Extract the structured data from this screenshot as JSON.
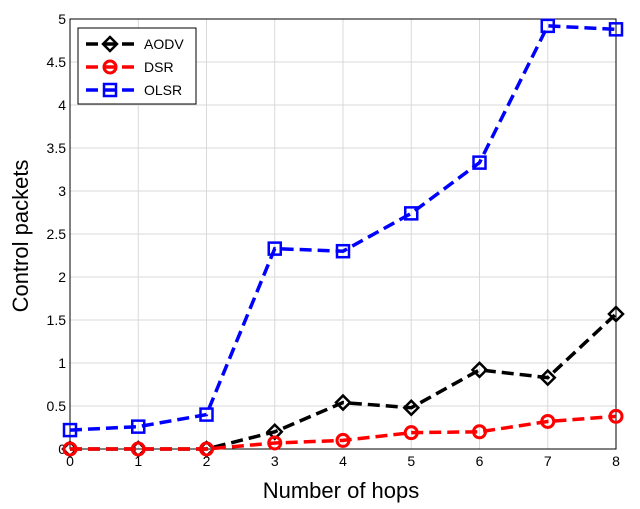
{
  "chart_data": {
    "type": "line",
    "title": "",
    "xlabel": "Number of hops",
    "ylabel": "Control packets",
    "x": [
      0,
      1,
      2,
      3,
      4,
      5,
      6,
      7,
      8
    ],
    "xlim": [
      0,
      8
    ],
    "ylim": [
      0,
      5
    ],
    "xticks": [
      "0",
      "1",
      "2",
      "3",
      "4",
      "5",
      "6",
      "7",
      "8"
    ],
    "yticks": [
      "0",
      "0.5",
      "1",
      "1.5",
      "2",
      "2.5",
      "3",
      "3.5",
      "4",
      "4.5",
      "5"
    ],
    "grid": true,
    "legend_position": "top-left",
    "series": [
      {
        "name": "AODV",
        "color": "#000000",
        "marker": "diamond",
        "line": "dashed",
        "values": [
          0,
          0,
          0,
          0.2,
          0.54,
          0.48,
          0.92,
          0.83,
          1.57
        ]
      },
      {
        "name": "DSR",
        "color": "#ff0000",
        "marker": "circle",
        "line": "dashed",
        "values": [
          0,
          0,
          0,
          0.07,
          0.1,
          0.19,
          0.2,
          0.32,
          0.38
        ]
      },
      {
        "name": "OLSR",
        "color": "#0000ff",
        "marker": "square",
        "line": "dashed",
        "values": [
          0.22,
          0.26,
          0.4,
          2.33,
          2.3,
          2.74,
          3.33,
          4.92,
          4.88
        ]
      }
    ]
  }
}
